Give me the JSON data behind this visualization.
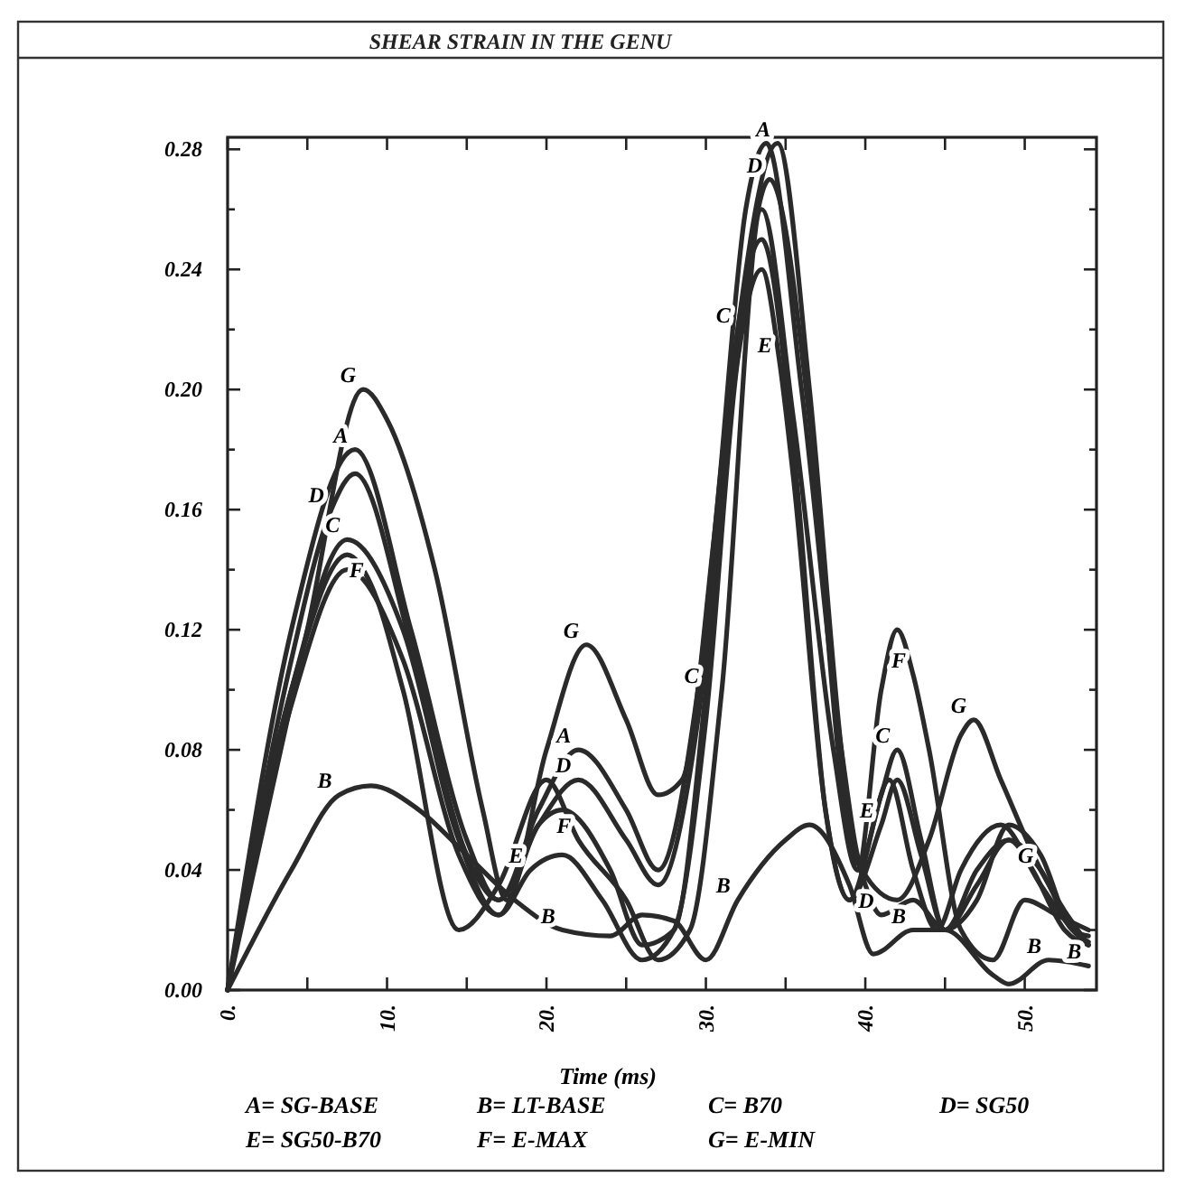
{
  "chart_data": {
    "type": "line",
    "title": "SHEAR STRAIN IN THE GENU",
    "xlabel": "Time (ms)",
    "xlim": [
      0,
      54.5
    ],
    "ylim": [
      0,
      0.284
    ],
    "xticks": [
      {
        "value": 0,
        "label": "0."
      },
      {
        "value": 5,
        "label": null
      },
      {
        "value": 10,
        "label": "10."
      },
      {
        "value": 15,
        "label": null
      },
      {
        "value": 20,
        "label": "20."
      },
      {
        "value": 25,
        "label": null
      },
      {
        "value": 30,
        "label": "30."
      },
      {
        "value": 35,
        "label": null
      },
      {
        "value": 40,
        "label": "40."
      },
      {
        "value": 45,
        "label": null
      },
      {
        "value": 50,
        "label": "50."
      }
    ],
    "yticks": [
      {
        "value": 0,
        "label": "0.00"
      },
      {
        "value": 0.02,
        "label": null
      },
      {
        "value": 0.04,
        "label": "0.04"
      },
      {
        "value": 0.06,
        "label": null
      },
      {
        "value": 0.08,
        "label": "0.08"
      },
      {
        "value": 0.1,
        "label": null
      },
      {
        "value": 0.12,
        "label": "0.12"
      },
      {
        "value": 0.14,
        "label": null
      },
      {
        "value": 0.16,
        "label": "0.16"
      },
      {
        "value": 0.18,
        "label": null
      },
      {
        "value": 0.2,
        "label": "0.20"
      },
      {
        "value": 0.22,
        "label": null
      },
      {
        "value": 0.24,
        "label": "0.24"
      },
      {
        "value": 0.26,
        "label": null
      },
      {
        "value": 0.28,
        "label": "0.28"
      }
    ],
    "series": [
      {
        "color": "#2a2a2a",
        "x": [
          0,
          4,
          8,
          11.5,
          15,
          17,
          19.5,
          22,
          25,
          27,
          29.5,
          31.5,
          34.5,
          36.5,
          38.5,
          39.5,
          41.5,
          43,
          44.5,
          46,
          48.5,
          50.5,
          52.5,
          54
        ],
        "values": [
          0,
          0.12,
          0.18,
          0.12,
          0.05,
          0.03,
          0.06,
          0.08,
          0.06,
          0.04,
          0.1,
          0.2,
          0.282,
          0.2,
          0.08,
          0.04,
          0.07,
          0.04,
          0.02,
          0.04,
          0.055,
          0.04,
          0.02,
          0.015
        ]
      },
      {
        "color": "#2a2a2a",
        "x": [
          0,
          4,
          7,
          9,
          12,
          15,
          18,
          21,
          24,
          26,
          28,
          30,
          32,
          35,
          36.5,
          39,
          40.5,
          43,
          45,
          48,
          49,
          51.5,
          54
        ],
        "values": [
          0,
          0.04,
          0.065,
          0.068,
          0.06,
          0.045,
          0.03,
          0.02,
          0.018,
          0.025,
          0.023,
          0.01,
          0.03,
          0.05,
          0.055,
          0.035,
          0.012,
          0.02,
          0.02,
          0.005,
          0.002,
          0.01,
          0.008
        ]
      },
      {
        "color": "#2a2a2a",
        "x": [
          0,
          4,
          7.5,
          11,
          14.5,
          17,
          19.5,
          21,
          24,
          26,
          28,
          30,
          32,
          33.5,
          35.5,
          37.5,
          39,
          41,
          42,
          43.5,
          45,
          47,
          49,
          51,
          53,
          54
        ],
        "values": [
          0,
          0.1,
          0.15,
          0.12,
          0.05,
          0.025,
          0.055,
          0.06,
          0.04,
          0.015,
          0.02,
          0.1,
          0.22,
          0.25,
          0.18,
          0.06,
          0.03,
          0.065,
          0.08,
          0.05,
          0.02,
          0.03,
          0.055,
          0.045,
          0.02,
          0.018
        ]
      },
      {
        "color": "#2a2a2a",
        "x": [
          0,
          4,
          6.5,
          8,
          11.5,
          15,
          17,
          19.5,
          22,
          25,
          27,
          29.5,
          31.5,
          34,
          36.5,
          38.5,
          40,
          41,
          43,
          45,
          47,
          49,
          51,
          53,
          54
        ],
        "values": [
          0,
          0.11,
          0.16,
          0.172,
          0.115,
          0.045,
          0.03,
          0.055,
          0.07,
          0.05,
          0.035,
          0.09,
          0.19,
          0.27,
          0.19,
          0.07,
          0.035,
          0.025,
          0.03,
          0.02,
          0.04,
          0.05,
          0.035,
          0.02,
          0.015
        ]
      },
      {
        "color": "#2a2a2a",
        "x": [
          0,
          4,
          7.5,
          11,
          14.5,
          17,
          19,
          21,
          23.5,
          26,
          28,
          30,
          32,
          33.5,
          34.6,
          35.5,
          37.5,
          39,
          41,
          42,
          43.5,
          45,
          47,
          49,
          51,
          53,
          54
        ],
        "values": [
          0,
          0.095,
          0.14,
          0.11,
          0.045,
          0.025,
          0.04,
          0.045,
          0.03,
          0.01,
          0.02,
          0.09,
          0.21,
          0.24,
          0.21,
          0.17,
          0.06,
          0.03,
          0.055,
          0.07,
          0.045,
          0.02,
          0.035,
          0.05,
          0.04,
          0.02,
          0.016
        ]
      },
      {
        "color": "#2a2a2a",
        "x": [
          0,
          4,
          7.5,
          9,
          11,
          14.5,
          17,
          20,
          22,
          25,
          27,
          29,
          31,
          33.5,
          35.5,
          38,
          39.5,
          41,
          42,
          43,
          44,
          46,
          48,
          50,
          52,
          54
        ],
        "values": [
          0,
          0.1,
          0.145,
          0.135,
          0.1,
          0.02,
          0.035,
          0.07,
          0.05,
          0.03,
          0.01,
          0.02,
          0.1,
          0.26,
          0.19,
          0.08,
          0.04,
          0.1,
          0.12,
          0.105,
          0.08,
          0.02,
          0.01,
          0.03,
          0.025,
          0.02
        ]
      },
      {
        "color": "#2a2a2a",
        "x": [
          0,
          5,
          8.5,
          10,
          13,
          16,
          17.5,
          20,
          22.5,
          25,
          27,
          28.5,
          30.5,
          32.5,
          33.8,
          36,
          38.5,
          39.8,
          42,
          44,
          46,
          46.8,
          48.5,
          51,
          54
        ],
        "values": [
          0,
          0.12,
          0.2,
          0.19,
          0.14,
          0.06,
          0.03,
          0.08,
          0.115,
          0.09,
          0.065,
          0.07,
          0.15,
          0.26,
          0.282,
          0.2,
          0.08,
          0.04,
          0.03,
          0.05,
          0.085,
          0.09,
          0.07,
          0.04,
          0.015
        ]
      }
    ],
    "annotations": [
      {
        "text": "G",
        "x": 8.5,
        "y": 0.2
      },
      {
        "text": "A",
        "x": 8,
        "y": 0.18
      },
      {
        "text": "D",
        "x": 6.5,
        "y": 0.16
      },
      {
        "text": "C",
        "x": 7.5,
        "y": 0.15
      },
      {
        "text": "F",
        "x": 9,
        "y": 0.135
      },
      {
        "text": "B",
        "x": 7,
        "y": 0.065
      },
      {
        "text": "G",
        "x": 22.5,
        "y": 0.115
      },
      {
        "text": "A",
        "x": 22,
        "y": 0.08
      },
      {
        "text": "D",
        "x": 22,
        "y": 0.07
      },
      {
        "text": "F",
        "x": 22,
        "y": 0.05
      },
      {
        "text": "E",
        "x": 19,
        "y": 0.04
      },
      {
        "text": "B",
        "x": 21,
        "y": 0.02
      },
      {
        "text": "C",
        "x": 32,
        "y": 0.22
      },
      {
        "text": "A",
        "x": 34.5,
        "y": 0.282
      },
      {
        "text": "D",
        "x": 34,
        "y": 0.27
      },
      {
        "text": "C",
        "x": 30,
        "y": 0.1
      },
      {
        "text": "E",
        "x": 34.6,
        "y": 0.21
      },
      {
        "text": "B",
        "x": 32,
        "y": 0.03
      },
      {
        "text": "C",
        "x": 42,
        "y": 0.08
      },
      {
        "text": "E",
        "x": 41,
        "y": 0.055
      },
      {
        "text": "F",
        "x": 43,
        "y": 0.105
      },
      {
        "text": "G",
        "x": 46.8,
        "y": 0.09
      },
      {
        "text": "D",
        "x": 41,
        "y": 0.025
      },
      {
        "text": "B",
        "x": 43,
        "y": 0.02
      },
      {
        "text": "B",
        "x": 51.5,
        "y": 0.01
      },
      {
        "text": "G",
        "x": 51,
        "y": 0.04
      },
      {
        "text": "B",
        "x": 54,
        "y": 0.008
      },
      "A= SG-BASE",
      "B= LT-BASE",
      "C= B70",
      "D= SG50",
      "E= SG50-B70",
      "F= E-MAX",
      "G= E-MIN"
    ]
  }
}
